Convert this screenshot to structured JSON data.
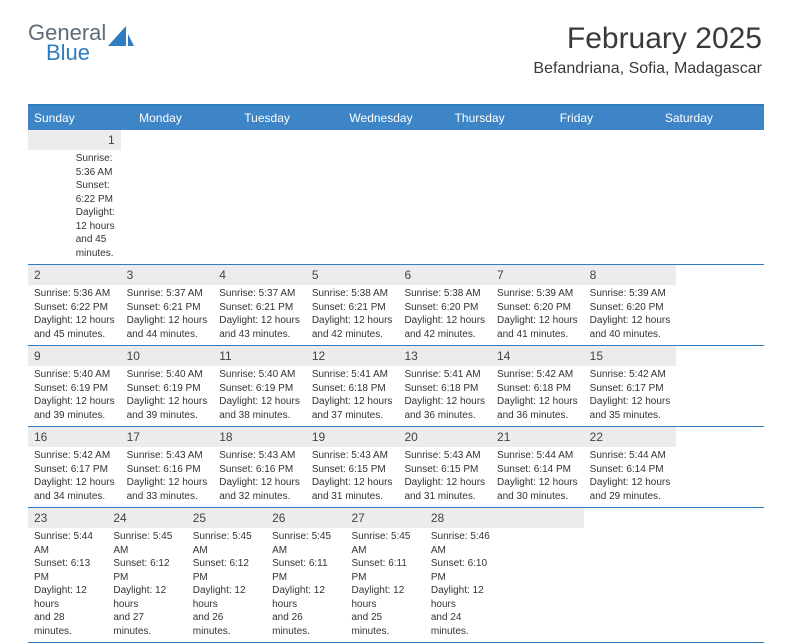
{
  "logo": {
    "word1": "General",
    "word2": "Blue",
    "color_gray": "#5f6b76",
    "color_blue": "#2e7cc1"
  },
  "header": {
    "title": "February 2025",
    "location": "Befandriana, Sofia, Madagascar"
  },
  "colors": {
    "header_bg": "#3d85c6",
    "border": "#2e7cc1",
    "daynum_bg": "#ececec"
  },
  "dayNames": [
    "Sunday",
    "Monday",
    "Tuesday",
    "Wednesday",
    "Thursday",
    "Friday",
    "Saturday"
  ],
  "weeks": [
    [
      null,
      null,
      null,
      null,
      null,
      null,
      {
        "n": "1",
        "sr": "Sunrise: 5:36 AM",
        "ss": "Sunset: 6:22 PM",
        "dl1": "Daylight: 12 hours",
        "dl2": "and 45 minutes."
      }
    ],
    [
      {
        "n": "2",
        "sr": "Sunrise: 5:36 AM",
        "ss": "Sunset: 6:22 PM",
        "dl1": "Daylight: 12 hours",
        "dl2": "and 45 minutes."
      },
      {
        "n": "3",
        "sr": "Sunrise: 5:37 AM",
        "ss": "Sunset: 6:21 PM",
        "dl1": "Daylight: 12 hours",
        "dl2": "and 44 minutes."
      },
      {
        "n": "4",
        "sr": "Sunrise: 5:37 AM",
        "ss": "Sunset: 6:21 PM",
        "dl1": "Daylight: 12 hours",
        "dl2": "and 43 minutes."
      },
      {
        "n": "5",
        "sr": "Sunrise: 5:38 AM",
        "ss": "Sunset: 6:21 PM",
        "dl1": "Daylight: 12 hours",
        "dl2": "and 42 minutes."
      },
      {
        "n": "6",
        "sr": "Sunrise: 5:38 AM",
        "ss": "Sunset: 6:20 PM",
        "dl1": "Daylight: 12 hours",
        "dl2": "and 42 minutes."
      },
      {
        "n": "7",
        "sr": "Sunrise: 5:39 AM",
        "ss": "Sunset: 6:20 PM",
        "dl1": "Daylight: 12 hours",
        "dl2": "and 41 minutes."
      },
      {
        "n": "8",
        "sr": "Sunrise: 5:39 AM",
        "ss": "Sunset: 6:20 PM",
        "dl1": "Daylight: 12 hours",
        "dl2": "and 40 minutes."
      }
    ],
    [
      {
        "n": "9",
        "sr": "Sunrise: 5:40 AM",
        "ss": "Sunset: 6:19 PM",
        "dl1": "Daylight: 12 hours",
        "dl2": "and 39 minutes."
      },
      {
        "n": "10",
        "sr": "Sunrise: 5:40 AM",
        "ss": "Sunset: 6:19 PM",
        "dl1": "Daylight: 12 hours",
        "dl2": "and 39 minutes."
      },
      {
        "n": "11",
        "sr": "Sunrise: 5:40 AM",
        "ss": "Sunset: 6:19 PM",
        "dl1": "Daylight: 12 hours",
        "dl2": "and 38 minutes."
      },
      {
        "n": "12",
        "sr": "Sunrise: 5:41 AM",
        "ss": "Sunset: 6:18 PM",
        "dl1": "Daylight: 12 hours",
        "dl2": "and 37 minutes."
      },
      {
        "n": "13",
        "sr": "Sunrise: 5:41 AM",
        "ss": "Sunset: 6:18 PM",
        "dl1": "Daylight: 12 hours",
        "dl2": "and 36 minutes."
      },
      {
        "n": "14",
        "sr": "Sunrise: 5:42 AM",
        "ss": "Sunset: 6:18 PM",
        "dl1": "Daylight: 12 hours",
        "dl2": "and 36 minutes."
      },
      {
        "n": "15",
        "sr": "Sunrise: 5:42 AM",
        "ss": "Sunset: 6:17 PM",
        "dl1": "Daylight: 12 hours",
        "dl2": "and 35 minutes."
      }
    ],
    [
      {
        "n": "16",
        "sr": "Sunrise: 5:42 AM",
        "ss": "Sunset: 6:17 PM",
        "dl1": "Daylight: 12 hours",
        "dl2": "and 34 minutes."
      },
      {
        "n": "17",
        "sr": "Sunrise: 5:43 AM",
        "ss": "Sunset: 6:16 PM",
        "dl1": "Daylight: 12 hours",
        "dl2": "and 33 minutes."
      },
      {
        "n": "18",
        "sr": "Sunrise: 5:43 AM",
        "ss": "Sunset: 6:16 PM",
        "dl1": "Daylight: 12 hours",
        "dl2": "and 32 minutes."
      },
      {
        "n": "19",
        "sr": "Sunrise: 5:43 AM",
        "ss": "Sunset: 6:15 PM",
        "dl1": "Daylight: 12 hours",
        "dl2": "and 31 minutes."
      },
      {
        "n": "20",
        "sr": "Sunrise: 5:43 AM",
        "ss": "Sunset: 6:15 PM",
        "dl1": "Daylight: 12 hours",
        "dl2": "and 31 minutes."
      },
      {
        "n": "21",
        "sr": "Sunrise: 5:44 AM",
        "ss": "Sunset: 6:14 PM",
        "dl1": "Daylight: 12 hours",
        "dl2": "and 30 minutes."
      },
      {
        "n": "22",
        "sr": "Sunrise: 5:44 AM",
        "ss": "Sunset: 6:14 PM",
        "dl1": "Daylight: 12 hours",
        "dl2": "and 29 minutes."
      }
    ],
    [
      {
        "n": "23",
        "sr": "Sunrise: 5:44 AM",
        "ss": "Sunset: 6:13 PM",
        "dl1": "Daylight: 12 hours",
        "dl2": "and 28 minutes."
      },
      {
        "n": "24",
        "sr": "Sunrise: 5:45 AM",
        "ss": "Sunset: 6:12 PM",
        "dl1": "Daylight: 12 hours",
        "dl2": "and 27 minutes."
      },
      {
        "n": "25",
        "sr": "Sunrise: 5:45 AM",
        "ss": "Sunset: 6:12 PM",
        "dl1": "Daylight: 12 hours",
        "dl2": "and 26 minutes."
      },
      {
        "n": "26",
        "sr": "Sunrise: 5:45 AM",
        "ss": "Sunset: 6:11 PM",
        "dl1": "Daylight: 12 hours",
        "dl2": "and 26 minutes."
      },
      {
        "n": "27",
        "sr": "Sunrise: 5:45 AM",
        "ss": "Sunset: 6:11 PM",
        "dl1": "Daylight: 12 hours",
        "dl2": "and 25 minutes."
      },
      {
        "n": "28",
        "sr": "Sunrise: 5:46 AM",
        "ss": "Sunset: 6:10 PM",
        "dl1": "Daylight: 12 hours",
        "dl2": "and 24 minutes."
      },
      null
    ]
  ]
}
